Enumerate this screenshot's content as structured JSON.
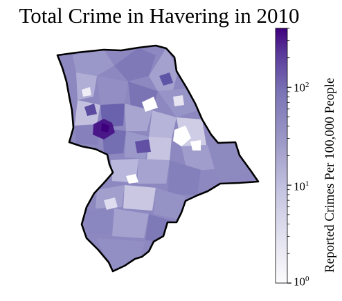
{
  "title": "Total Crime in Havering in 2010",
  "colorbar": {
    "label": "Reported Crimes Per 100,000 People",
    "scale": "log",
    "range": [
      1,
      400
    ],
    "ticks": [
      {
        "base": "10",
        "exp": "0",
        "value": 1
      },
      {
        "base": "10",
        "exp": "1",
        "value": 10
      },
      {
        "base": "10",
        "exp": "2",
        "value": 100
      }
    ],
    "colormap": "Purples",
    "colors": {
      "low": "#fcfbfd",
      "mid": "#9e9ac8",
      "high": "#3f007d"
    }
  },
  "map": {
    "region": "Havering",
    "year": "2010",
    "outline_color": "#000000",
    "fill_color": "#8c89c0"
  }
}
